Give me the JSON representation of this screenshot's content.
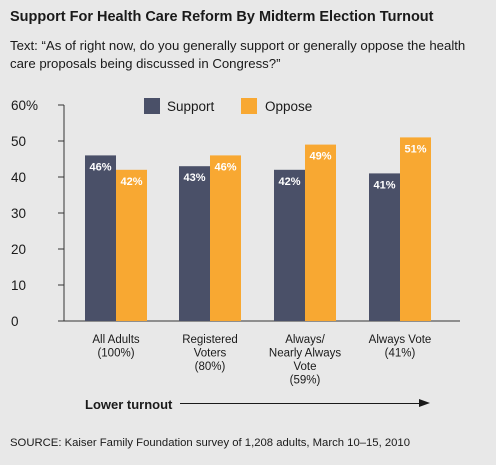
{
  "title": "Support For Health Care Reform By Midterm Election Turnout",
  "question": "Text: “As of right now, do you generally support or generally oppose the health care proposals being discussed in Congress?”",
  "turnout_label": "Lower turnout",
  "source": "SOURCE: Kaiser Family Foundation survey of 1,208 adults, March 10–15, 2010",
  "colors": {
    "support": "#4a5068",
    "oppose": "#f8a832",
    "axis": "#333333"
  },
  "chart_data": {
    "type": "bar",
    "categories": [
      [
        "All Adults",
        "(100%)"
      ],
      [
        "Registered",
        "Voters",
        "(80%)"
      ],
      [
        "Always/",
        "Nearly Always",
        "Vote",
        "(59%)"
      ],
      [
        "Always Vote",
        "(41%)"
      ]
    ],
    "series": [
      {
        "name": "Support",
        "values": [
          46,
          43,
          42,
          41
        ],
        "labels": [
          "46%",
          "43%",
          "42%",
          "41%"
        ]
      },
      {
        "name": "Oppose",
        "values": [
          42,
          46,
          49,
          51
        ],
        "labels": [
          "42%",
          "46%",
          "49%",
          "51%"
        ]
      }
    ],
    "ylim": [
      0,
      60
    ],
    "yticks": [
      "0",
      "10",
      "20",
      "30",
      "40",
      "50",
      "60%"
    ],
    "legend": "top-center"
  }
}
